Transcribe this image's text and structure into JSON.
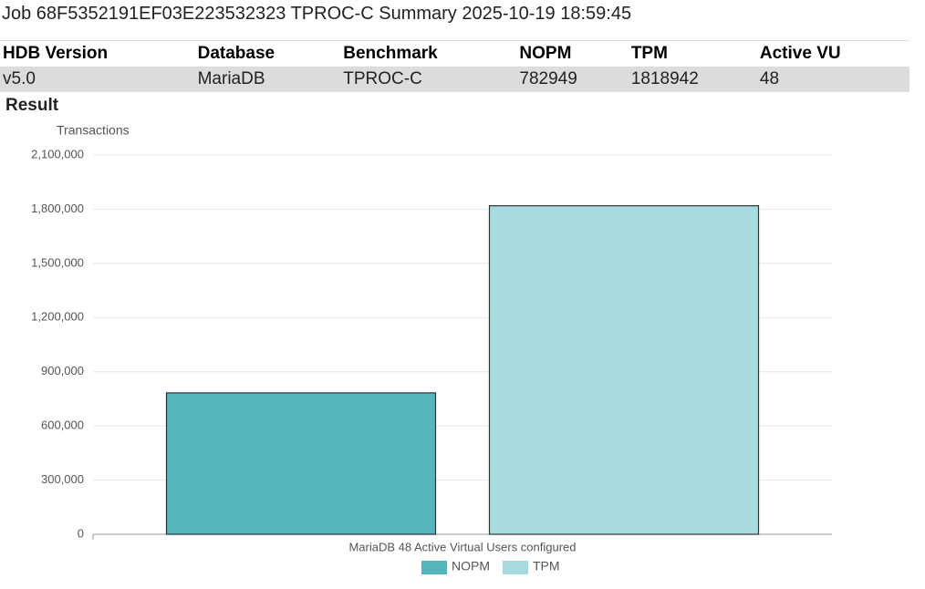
{
  "header": {
    "title": "Job 68F5352191EF03E223532323 TPROC-C Summary 2025-10-19 18:59:45"
  },
  "table": {
    "headers": [
      "HDB Version",
      "Database",
      "Benchmark",
      "NOPM",
      "TPM",
      "Active VU"
    ],
    "rows": [
      [
        "v5.0",
        "MariaDB",
        "TPROC-C",
        782949,
        1818942,
        48
      ]
    ]
  },
  "section_title": "Result",
  "chart_data": {
    "type": "bar",
    "y_label": "Transactions",
    "categories": [
      "MariaDB 48 Active Virtual Users configured"
    ],
    "series": [
      {
        "name": "NOPM",
        "color": "#55b4bc",
        "values": [
          782949
        ]
      },
      {
        "name": "TPM",
        "color": "#a8dbdf",
        "values": [
          1818942
        ]
      }
    ],
    "ylim": [
      0,
      2100000
    ],
    "yticks": [
      0,
      {
        "value": 300000,
        "label": "300,000"
      },
      {
        "value": 600000,
        "label": "600,000"
      },
      {
        "value": 900000,
        "label": "900,000"
      },
      {
        "value": 1200000,
        "label": "1,200,000"
      },
      {
        "value": 1500000,
        "label": "1,500,000"
      },
      {
        "value": 1800000,
        "label": "1,800,000"
      },
      {
        "value": 2100000,
        "label": "2,100,000"
      }
    ],
    "grid": true,
    "legend": "bottom"
  }
}
